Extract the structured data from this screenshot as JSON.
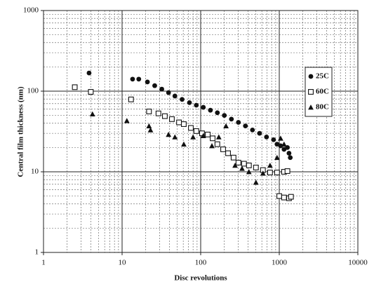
{
  "chart_data": {
    "type": "scatter",
    "xlabel": "Disc revolutions",
    "ylabel": "Central film thickness (nm)",
    "xscale": "log",
    "yscale": "log",
    "xlim": [
      1,
      10000
    ],
    "ylim": [
      1,
      1000
    ],
    "xticks": [
      1,
      10,
      100,
      1000,
      10000
    ],
    "yticks": [
      1,
      10,
      100,
      1000
    ],
    "grid": true,
    "legend": "right",
    "series": [
      {
        "name": "25C",
        "color": "#111111",
        "marker": "circle",
        "x": [
          3.8,
          13.6,
          16.3,
          21,
          26,
          32,
          39,
          47,
          58,
          72,
          88,
          108,
          133,
          163,
          200,
          246,
          302,
          371,
          456,
          561,
          688,
          846,
          936,
          1040,
          1150,
          1270,
          1330,
          1380
        ],
        "values": [
          168,
          141,
          141,
          130,
          117,
          106,
          96,
          87,
          79,
          72,
          67,
          63,
          58,
          54,
          50,
          45,
          41,
          37,
          33,
          30,
          27,
          25,
          22,
          21,
          19,
          20,
          17,
          15
        ]
      },
      {
        "name": "60C",
        "color": "#111111",
        "marker": "square-open",
        "x": [
          2.5,
          4,
          13,
          22,
          29,
          35,
          43,
          53,
          61,
          75,
          88,
          104,
          123,
          142,
          163,
          193,
          223,
          262,
          302,
          356,
          411,
          505,
          620,
          763,
          937,
          1150,
          1270,
          1000,
          1150,
          1330,
          1410
        ],
        "values": [
          112,
          98,
          79,
          56,
          53,
          49,
          45,
          41,
          39,
          35,
          32,
          30,
          29,
          26,
          22,
          19,
          17,
          15,
          13,
          12.6,
          12,
          11.3,
          10.5,
          9.8,
          9.8,
          10,
          10.2,
          5,
          4.8,
          4.7,
          4.9
        ]
      },
      {
        "name": "80C",
        "color": "#111111",
        "marker": "triangle",
        "x": [
          4.2,
          11.5,
          22,
          23,
          39,
          47,
          61,
          80,
          108,
          139,
          170,
          210,
          274,
          336,
          411,
          505,
          620,
          763,
          937,
          1040,
          1150
        ],
        "values": [
          52,
          43,
          37,
          33,
          29,
          27,
          22,
          27,
          28,
          21,
          27,
          37,
          12,
          11,
          10,
          7.4,
          9.6,
          12,
          15,
          26,
          22
        ]
      }
    ]
  }
}
